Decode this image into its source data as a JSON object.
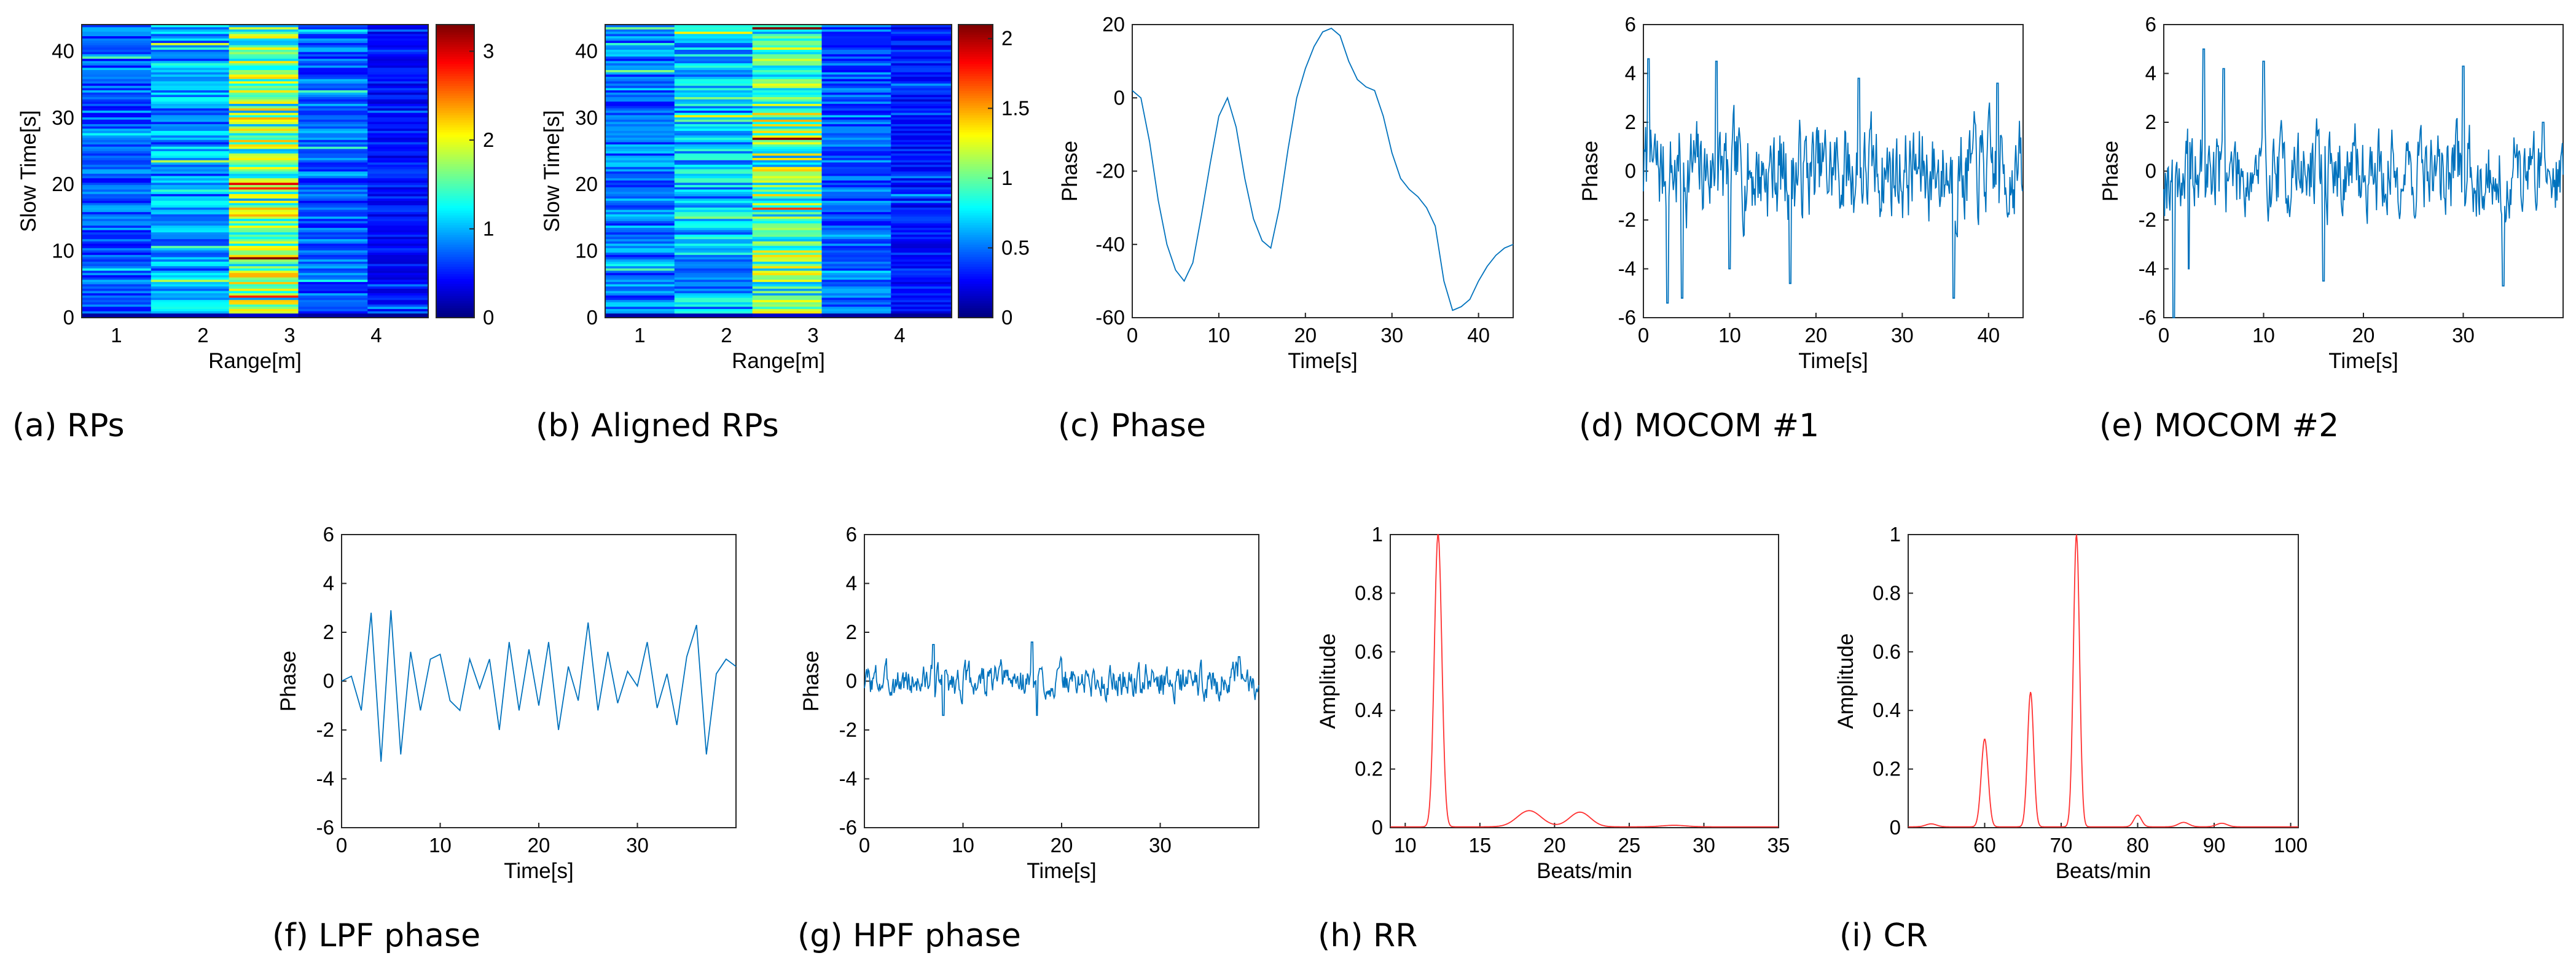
{
  "figure": {
    "colors": {
      "line_blue": "#0072bd",
      "line_red": "#ff3030",
      "axis": "#262626"
    }
  },
  "chart_data": [
    {
      "id": "a",
      "type": "heatmap",
      "caption": "(a) RPs",
      "title": "",
      "xlabel": "Range[m]",
      "ylabel": "Slow Time[s]",
      "xlim": [
        0.6,
        4.6
      ],
      "ylim": [
        0,
        44
      ],
      "xticks": [
        1,
        2,
        3,
        4
      ],
      "yticks": [
        0,
        10,
        20,
        30,
        40
      ],
      "columns": [
        {
          "x0": 0.6,
          "x1": 1.4,
          "mean": 0.7
        },
        {
          "x0": 1.4,
          "x1": 2.3,
          "mean": 0.9
        },
        {
          "x0": 2.3,
          "x1": 3.1,
          "mean": 1.6
        },
        {
          "x0": 3.1,
          "x1": 3.9,
          "mean": 0.7
        },
        {
          "x0": 3.9,
          "x1": 4.6,
          "mean": 0.45
        }
      ],
      "colorbar": {
        "min": 0,
        "max": 3.3,
        "ticks": [
          0,
          1,
          2,
          3
        ]
      },
      "colormap": "jet"
    },
    {
      "id": "b",
      "type": "heatmap",
      "caption": "(b) Aligned RPs",
      "title": "",
      "xlabel": "Range[m]",
      "ylabel": "Slow Time[s]",
      "xlim": [
        0.6,
        4.6
      ],
      "ylim": [
        0,
        44
      ],
      "xticks": [
        1,
        2,
        3,
        4
      ],
      "yticks": [
        0,
        10,
        20,
        30,
        40
      ],
      "columns": [
        {
          "x0": 0.6,
          "x1": 1.4,
          "mean": 0.5
        },
        {
          "x0": 1.4,
          "x1": 2.3,
          "mean": 0.65
        },
        {
          "x0": 2.3,
          "x1": 3.1,
          "mean": 1.0
        },
        {
          "x0": 3.1,
          "x1": 3.9,
          "mean": 0.45
        },
        {
          "x0": 3.9,
          "x1": 4.6,
          "mean": 0.3
        }
      ],
      "colorbar": {
        "min": 0,
        "max": 2.1,
        "ticks": [
          0,
          0.5,
          1,
          1.5,
          2
        ]
      },
      "colormap": "jet"
    },
    {
      "id": "c",
      "type": "line",
      "caption": "(c) Phase",
      "xlabel": "Time[s]",
      "ylabel": "Phase",
      "xlim": [
        0,
        44
      ],
      "ylim": [
        -60,
        20
      ],
      "xticks": [
        0,
        10,
        20,
        30,
        40
      ],
      "yticks": [
        -60,
        -40,
        -20,
        0,
        20
      ],
      "color": "#0072bd",
      "x": [
        0,
        1,
        2,
        3,
        4,
        5,
        6,
        7,
        8,
        9,
        10,
        11,
        12,
        13,
        14,
        15,
        16,
        17,
        18,
        19,
        20,
        21,
        22,
        23,
        24,
        25,
        26,
        27,
        28,
        29,
        30,
        31,
        32,
        33,
        34,
        35,
        36,
        37,
        38,
        39,
        40,
        41,
        42,
        43,
        44
      ],
      "values": [
        2,
        0,
        -12,
        -28,
        -40,
        -47,
        -50,
        -45,
        -32,
        -18,
        -5,
        0,
        -8,
        -22,
        -33,
        -39,
        -41,
        -30,
        -14,
        0,
        8,
        14,
        18,
        19,
        17,
        10,
        5,
        3,
        2,
        -5,
        -15,
        -22,
        -25,
        -27,
        -30,
        -35,
        -50,
        -58,
        -57,
        -55,
        -50,
        -46,
        -43,
        -41,
        -40
      ]
    },
    {
      "id": "d",
      "type": "line",
      "caption": "(d) MOCOM #1",
      "xlabel": "Time[s]",
      "ylabel": "Phase",
      "xlim": [
        0,
        44
      ],
      "ylim": [
        -6,
        6
      ],
      "xticks": [
        0,
        10,
        20,
        30,
        40
      ],
      "yticks": [
        -6,
        -4,
        -2,
        0,
        2,
        4,
        6
      ],
      "color": "#0072bd",
      "seed": 7,
      "amplitude": 2.2,
      "landmarks": [
        [
          0.6,
          4.6
        ],
        [
          2.8,
          -5.4
        ],
        [
          4.5,
          -5.2
        ],
        [
          8.5,
          4.5
        ],
        [
          10,
          -4
        ],
        [
          17,
          -4.6
        ],
        [
          25,
          3.8
        ],
        [
          36,
          -5.2
        ],
        [
          41,
          3.6
        ],
        [
          44,
          -0.8
        ]
      ]
    },
    {
      "id": "e",
      "type": "line",
      "caption": "(e) MOCOM #2",
      "xlabel": "Time[s]",
      "ylabel": "Phase",
      "xlim": [
        0,
        40
      ],
      "ylim": [
        -6,
        6
      ],
      "xticks": [
        0,
        10,
        20,
        30
      ],
      "yticks": [
        -6,
        -4,
        -2,
        0,
        2,
        4,
        6
      ],
      "color": "#0072bd",
      "seed": 19,
      "amplitude": 2.0,
      "landmarks": [
        [
          1,
          -6
        ],
        [
          2.5,
          -4
        ],
        [
          4,
          5
        ],
        [
          6,
          4.2
        ],
        [
          10,
          4.5
        ],
        [
          16,
          -4.5
        ],
        [
          30,
          4.3
        ],
        [
          34,
          -4.7
        ],
        [
          38,
          2
        ]
      ]
    },
    {
      "id": "f",
      "type": "line",
      "caption": "(f) LPF phase",
      "xlabel": "Time[s]",
      "ylabel": "Phase",
      "xlim": [
        0,
        40
      ],
      "ylim": [
        -6,
        6
      ],
      "xticks": [
        0,
        10,
        20,
        30
      ],
      "yticks": [
        -6,
        -4,
        -2,
        0,
        2,
        4,
        6
      ],
      "color": "#0072bd",
      "x": [
        0,
        1,
        2,
        3,
        4,
        5,
        6,
        7,
        8,
        9,
        10,
        11,
        12,
        13,
        14,
        15,
        16,
        17,
        18,
        19,
        20,
        21,
        22,
        23,
        24,
        25,
        26,
        27,
        28,
        29,
        30,
        31,
        32,
        33,
        34,
        35,
        36,
        37,
        38,
        39,
        40
      ],
      "values": [
        0,
        0.2,
        -1.2,
        2.8,
        -3.3,
        2.9,
        -3.0,
        1.2,
        -1.2,
        0.9,
        1.1,
        -0.8,
        -1.2,
        0.9,
        -0.3,
        0.9,
        -2.0,
        1.6,
        -1.2,
        1.3,
        -1.0,
        1.6,
        -2.0,
        0.6,
        -0.8,
        2.4,
        -1.2,
        1.2,
        -0.9,
        0.4,
        -0.2,
        1.6,
        -1.1,
        0.3,
        -1.8,
        1.0,
        2.3,
        -3.0,
        0.3,
        0.9,
        0.6
      ]
    },
    {
      "id": "g",
      "type": "line",
      "caption": "(g) HPF phase",
      "xlabel": "Time[s]",
      "ylabel": "Phase",
      "xlim": [
        0,
        40
      ],
      "ylim": [
        -6,
        6
      ],
      "xticks": [
        0,
        10,
        20,
        30
      ],
      "yticks": [
        -6,
        -4,
        -2,
        0,
        2,
        4,
        6
      ],
      "color": "#0072bd",
      "seed": 3,
      "amplitude": 0.75,
      "landmarks": [
        [
          7,
          1.5
        ],
        [
          8,
          -1.4
        ],
        [
          17,
          1.6
        ],
        [
          17.5,
          -1.4
        ],
        [
          38,
          1.0
        ]
      ]
    },
    {
      "id": "h",
      "type": "line",
      "caption": "(h) RR",
      "xlabel": "Beats/min",
      "ylabel": "Amplitude",
      "xlim": [
        9,
        35
      ],
      "ylim": [
        0,
        1
      ],
      "xticks": [
        10,
        15,
        20,
        25,
        30,
        35
      ],
      "yticks": [
        0,
        0.2,
        0.4,
        0.6,
        0.8,
        1
      ],
      "color": "#ff3030",
      "peaks": [
        [
          12.2,
          1.0,
          0.25
        ],
        [
          18.3,
          0.055,
          0.8
        ],
        [
          21.7,
          0.05,
          0.7
        ],
        [
          28,
          0.005,
          0.8
        ]
      ]
    },
    {
      "id": "i",
      "type": "line",
      "caption": "(i) CR",
      "xlabel": "Beats/min",
      "ylabel": "Amplitude",
      "xlim": [
        50,
        101
      ],
      "ylim": [
        0,
        1
      ],
      "xticks": [
        60,
        70,
        80,
        90,
        100
      ],
      "yticks": [
        0,
        0.2,
        0.4,
        0.6,
        0.8,
        1
      ],
      "color": "#ff3030",
      "peaks": [
        [
          53,
          0.01,
          0.7
        ],
        [
          60,
          0.3,
          0.45
        ],
        [
          66,
          0.46,
          0.4
        ],
        [
          72,
          1.0,
          0.4
        ],
        [
          80,
          0.04,
          0.5
        ],
        [
          86,
          0.015,
          0.7
        ],
        [
          91,
          0.012,
          0.7
        ]
      ]
    }
  ]
}
